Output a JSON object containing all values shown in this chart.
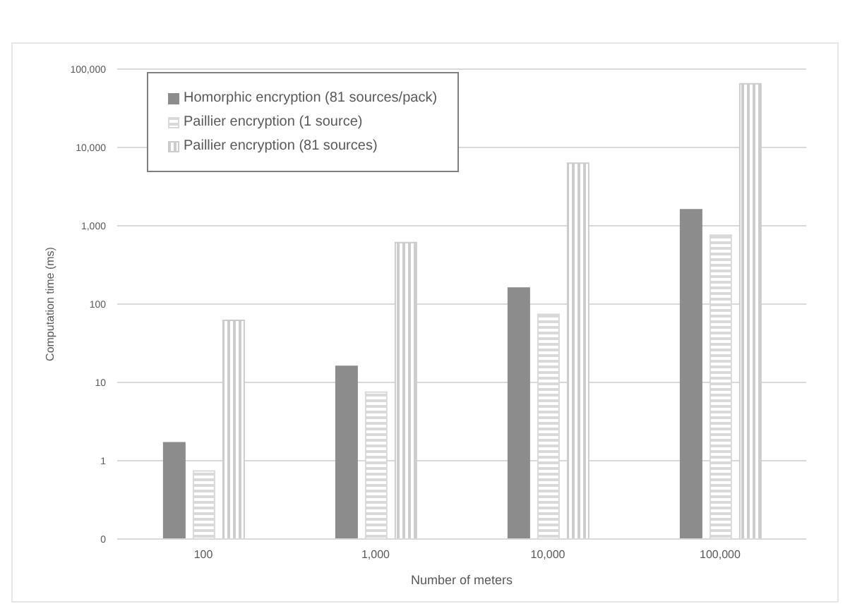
{
  "chart_data": {
    "type": "bar",
    "xlabel": "Number of meters",
    "ylabel": "Computation time (ms)",
    "categories": [
      "100",
      "1,000",
      "10,000",
      "100,000"
    ],
    "series": [
      {
        "name": "Homorphic encryption (81 sources/pack)",
        "color": "#8c8c8c",
        "values": [
          1.7,
          16,
          160,
          1600
        ]
      },
      {
        "name": "Paillier encryption (1 source)",
        "color": "#d9d9d9",
        "values": [
          0.74,
          7.5,
          74,
          760
        ]
      },
      {
        "name": "Paillier encryption (81 sources)",
        "color": "#cccccc",
        "values": [
          62,
          610,
          6300,
          65000
        ]
      }
    ],
    "log": "y",
    "ylim": [
      0.1,
      100000
    ],
    "yticks": [
      {
        "value": 0.1,
        "label": "0"
      },
      1,
      10,
      100,
      {
        "value": 1000,
        "label": "1,000"
      },
      {
        "value": 10000,
        "label": "10,000"
      },
      {
        "value": 100000,
        "label": "100,000"
      }
    ],
    "grid": "y",
    "legend": "top left"
  }
}
